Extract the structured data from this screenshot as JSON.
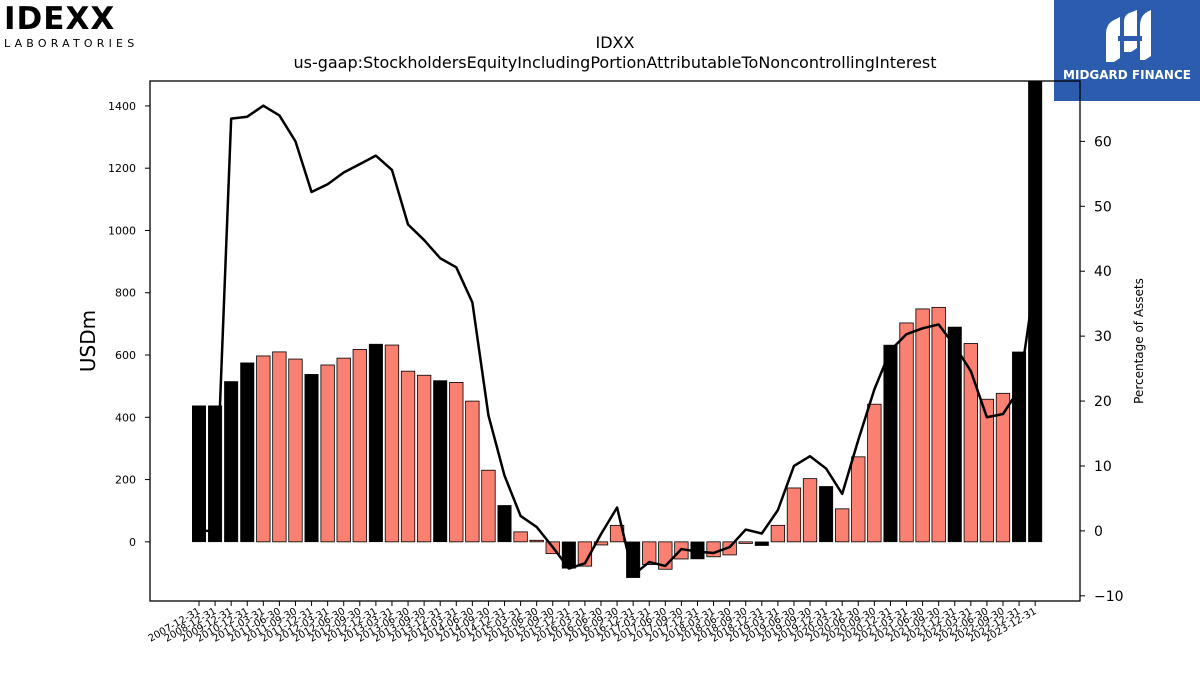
{
  "logos": {
    "left": {
      "word": "IDEXX",
      "sub": "LABORATORIES"
    },
    "right": {
      "brand": "MIDGARD FINANCE",
      "bg_color": "#2b5cad"
    }
  },
  "chart_data": {
    "type": "bar",
    "title": "IDXX",
    "subtitle": "us-gaap:StockholdersEquityIncludingPortionAttributableToNoncontrollingInterest",
    "ylabel": "USDm",
    "y2label": "Percentage of Assets",
    "ylim": [
      -190,
      1480
    ],
    "y2lim": [
      -10.8,
      69.3
    ],
    "yticks": [
      0,
      200,
      400,
      600,
      800,
      1000,
      1200,
      1400
    ],
    "y2ticks": [
      -10,
      0,
      10,
      20,
      30,
      40,
      50,
      60
    ],
    "colors": {
      "annual": "#000000",
      "quarter": "#fa8072",
      "line": "#000000"
    },
    "categories": [
      "2007-12-31",
      "2008-12-31",
      "2009-12-31",
      "2010-12-31",
      "2011-03-31",
      "2011-06-30",
      "2011-09-30",
      "2011-12-31",
      "2012-03-31",
      "2012-06-30",
      "2012-09-30",
      "2012-12-31",
      "2013-03-31",
      "2013-06-30",
      "2013-09-30",
      "2013-12-31",
      "2014-03-31",
      "2014-06-30",
      "2014-09-30",
      "2014-12-31",
      "2015-03-31",
      "2015-06-30",
      "2015-09-30",
      "2015-12-31",
      "2016-03-31",
      "2016-06-30",
      "2016-09-30",
      "2016-12-31",
      "2017-03-31",
      "2017-06-30",
      "2017-09-30",
      "2017-12-31",
      "2018-03-31",
      "2018-06-30",
      "2018-09-30",
      "2018-12-31",
      "2019-03-31",
      "2019-06-30",
      "2019-09-30",
      "2019-12-31",
      "2020-03-31",
      "2020-06-30",
      "2020-09-30",
      "2020-12-31",
      "2021-03-31",
      "2021-06-30",
      "2021-09-30",
      "2021-12-31",
      "2022-03-31",
      "2022-06-30",
      "2022-09-30",
      "2022-12-31",
      "2023-12-31"
    ],
    "tick_labels": [
      "2007-12-31",
      "2008-12-31",
      "2009-12-31",
      "2010-12-31",
      "2011-03-31",
      "2011-06-30",
      "2011-09-30",
      "2011-12-31",
      "2012-03-31",
      "2012-06-30",
      "2012-09-30",
      "2012-12-31",
      "2013-03-31",
      "2013-06-30",
      "2013-09-30",
      "2013-12-31",
      "2014-03-31",
      "2014-06-30",
      "2014-09-30",
      "2014-12-31",
      "2015-03-31",
      "2015-06-30",
      "2015-09-30",
      "2015-12-31",
      "2016-03-31",
      "2016-06-30",
      "2016-09-30",
      "2016-12-31",
      "2017-03-31",
      "2017-06-30",
      "2017-09-30",
      "2017-12-31",
      "2018-03-31",
      "2018-06-30",
      "2018-09-30",
      "2018-12-31",
      "2019-03-31",
      "2019-06-30",
      "2019-09-30",
      "2019-12-31",
      "2020-03-31",
      "2020-06-30",
      "2020-09-30",
      "2020-12-31",
      "2021-03-31",
      "2021-06-30",
      "2021-09-30",
      "2021-12-31",
      "2022-03-31",
      "2022-06-30",
      "2022-09-30",
      "2022-12-31",
      "2023-12-31"
    ],
    "annual": [
      1,
      1,
      1,
      1,
      0,
      0,
      0,
      1,
      0,
      0,
      0,
      1,
      0,
      0,
      0,
      1,
      0,
      0,
      0,
      1,
      0,
      0,
      0,
      1,
      0,
      0,
      0,
      1,
      0,
      0,
      0,
      1,
      0,
      0,
      0,
      1,
      0,
      0,
      0,
      1,
      0,
      0,
      0,
      1,
      0,
      0,
      0,
      1,
      0,
      0,
      0,
      1,
      1
    ],
    "values": [
      437,
      437,
      515,
      575,
      597,
      610,
      587,
      538,
      568,
      590,
      618,
      635,
      632,
      548,
      535,
      518,
      512,
      452,
      230,
      117,
      32,
      5,
      -38,
      -85,
      -78,
      -10,
      53,
      -115,
      -73,
      -88,
      -55,
      -55,
      -48,
      -42,
      -5,
      -12,
      53,
      173,
      203,
      178,
      106,
      273,
      442,
      632,
      703,
      748,
      753,
      690,
      637,
      458,
      477,
      610,
      1480
    ],
    "line_pct": [
      0.0,
      0.0,
      63.5,
      63.8,
      65.5,
      64.0,
      60.0,
      52.2,
      53.4,
      55.2,
      56.5,
      57.8,
      55.6,
      47.2,
      44.8,
      42.0,
      40.6,
      35.2,
      17.8,
      8.5,
      2.3,
      0.6,
      -2.5,
      -5.8,
      -5.0,
      -0.5,
      3.6,
      -6.8,
      -4.8,
      -5.4,
      -2.8,
      -3.2,
      -3.4,
      -2.5,
      0.2,
      -0.4,
      3.2,
      10.0,
      11.5,
      9.6,
      5.7,
      14.0,
      21.8,
      27.8,
      30.3,
      31.2,
      31.8,
      28.5,
      24.6,
      17.5,
      18.0,
      21.8,
      38.8
    ]
  }
}
